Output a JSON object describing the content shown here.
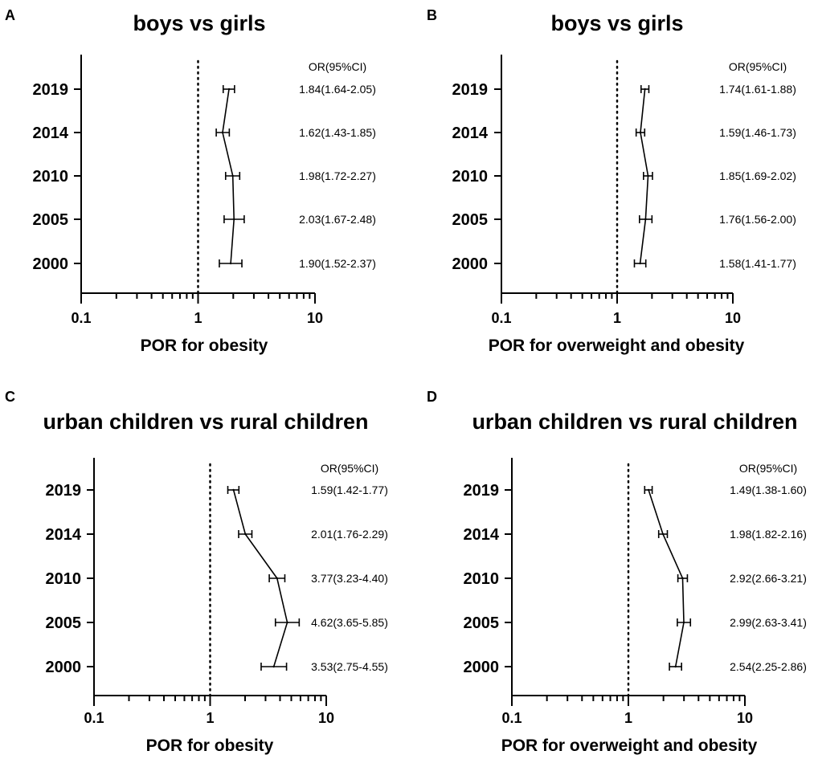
{
  "chart_data": [
    {
      "type": "forest",
      "panel": "A",
      "title": "boys vs girls",
      "xlabel": "POR for obesity",
      "xscale": "log",
      "xlim": [
        0.1,
        10
      ],
      "xticks": [
        "0.1",
        "1",
        "10"
      ],
      "reference_line": 1,
      "ci_header": "OR(95%CI)",
      "rows": [
        {
          "year": "2019",
          "or": 1.84,
          "lo": 1.64,
          "hi": 2.05,
          "text": "1.84(1.64-2.05)"
        },
        {
          "year": "2014",
          "or": 1.62,
          "lo": 1.43,
          "hi": 1.85,
          "text": "1.62(1.43-1.85)"
        },
        {
          "year": "2010",
          "or": 1.98,
          "lo": 1.72,
          "hi": 2.27,
          "text": "1.98(1.72-2.27)"
        },
        {
          "year": "2005",
          "or": 2.03,
          "lo": 1.67,
          "hi": 2.48,
          "text": "2.03(1.67-2.48)"
        },
        {
          "year": "2000",
          "or": 1.9,
          "lo": 1.52,
          "hi": 2.37,
          "text": "1.90(1.52-2.37)"
        }
      ]
    },
    {
      "type": "forest",
      "panel": "B",
      "title": "boys vs girls",
      "xlabel": "POR for overweight and obesity",
      "xscale": "log",
      "xlim": [
        0.1,
        10
      ],
      "xticks": [
        "0.1",
        "1",
        "10"
      ],
      "reference_line": 1,
      "ci_header": "OR(95%CI)",
      "rows": [
        {
          "year": "2019",
          "or": 1.74,
          "lo": 1.61,
          "hi": 1.88,
          "text": "1.74(1.61-1.88)"
        },
        {
          "year": "2014",
          "or": 1.59,
          "lo": 1.46,
          "hi": 1.73,
          "text": "1.59(1.46-1.73)"
        },
        {
          "year": "2010",
          "or": 1.85,
          "lo": 1.69,
          "hi": 2.02,
          "text": "1.85(1.69-2.02)"
        },
        {
          "year": "2005",
          "or": 1.76,
          "lo": 1.56,
          "hi": 2.0,
          "text": "1.76(1.56-2.00)"
        },
        {
          "year": "2000",
          "or": 1.58,
          "lo": 1.41,
          "hi": 1.77,
          "text": "1.58(1.41-1.77)"
        }
      ]
    },
    {
      "type": "forest",
      "panel": "C",
      "title": "urban children vs rural children",
      "xlabel": "POR for obesity",
      "xscale": "log",
      "xlim": [
        0.1,
        10
      ],
      "xticks": [
        "0.1",
        "1",
        "10"
      ],
      "reference_line": 1,
      "ci_header": "OR(95%CI)",
      "rows": [
        {
          "year": "2019",
          "or": 1.59,
          "lo": 1.42,
          "hi": 1.77,
          "text": "1.59(1.42-1.77)"
        },
        {
          "year": "2014",
          "or": 2.01,
          "lo": 1.76,
          "hi": 2.29,
          "text": "2.01(1.76-2.29)"
        },
        {
          "year": "2010",
          "or": 3.77,
          "lo": 3.23,
          "hi": 4.4,
          "text": "3.77(3.23-4.40)"
        },
        {
          "year": "2005",
          "or": 4.62,
          "lo": 3.65,
          "hi": 5.85,
          "text": "4.62(3.65-5.85)"
        },
        {
          "year": "2000",
          "or": 3.53,
          "lo": 2.75,
          "hi": 4.55,
          "text": "3.53(2.75-4.55)"
        }
      ]
    },
    {
      "type": "forest",
      "panel": "D",
      "title": "urban children vs rural children",
      "xlabel": "POR for overweight and obesity",
      "xscale": "log",
      "xlim": [
        0.1,
        10
      ],
      "xticks": [
        "0.1",
        "1",
        "10"
      ],
      "reference_line": 1,
      "ci_header": "OR(95%CI)",
      "rows": [
        {
          "year": "2019",
          "or": 1.49,
          "lo": 1.38,
          "hi": 1.6,
          "text": "1.49(1.38-1.60)"
        },
        {
          "year": "2014",
          "or": 1.98,
          "lo": 1.82,
          "hi": 2.16,
          "text": "1.98(1.82-2.16)"
        },
        {
          "year": "2010",
          "or": 2.92,
          "lo": 2.66,
          "hi": 3.21,
          "text": "2.92(2.66-3.21)"
        },
        {
          "year": "2005",
          "or": 2.99,
          "lo": 2.63,
          "hi": 3.41,
          "text": "2.99(2.63-3.41)"
        },
        {
          "year": "2000",
          "or": 2.54,
          "lo": 2.25,
          "hi": 2.86,
          "text": "2.54(2.25-2.86)"
        }
      ]
    }
  ]
}
